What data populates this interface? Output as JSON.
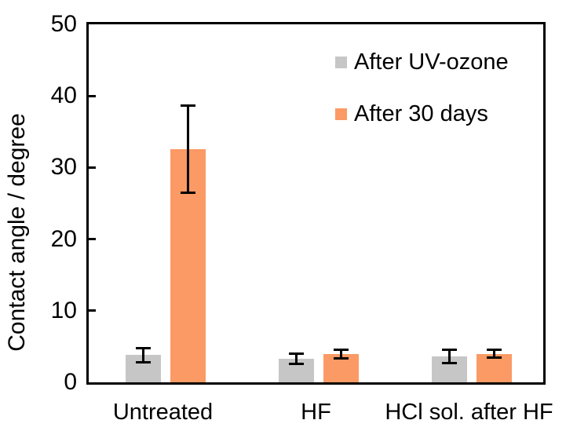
{
  "chart_data": {
    "type": "bar",
    "title": "",
    "xlabel": "",
    "ylabel": "Contact angle / degree",
    "categories": [
      "Untreated",
      "HF",
      "HCl sol. after HF"
    ],
    "series": [
      {
        "name": "After UV-ozone",
        "color": "#C6C6C6",
        "values": [
          3.8,
          3.3,
          3.6
        ],
        "errors": [
          1.0,
          0.7,
          0.9
        ]
      },
      {
        "name": "After 30 days",
        "color": "#FB9A64",
        "values": [
          32.6,
          3.9,
          4.0
        ],
        "errors": [
          6.1,
          0.6,
          0.6
        ]
      }
    ],
    "ylim": [
      0,
      50
    ],
    "yticks": [
      0,
      10,
      20,
      30,
      40,
      50
    ],
    "legend_position": "top-right-inside",
    "grid": false,
    "frame": "full-box",
    "error_bar_color": "#000000",
    "axis_color": "#000000"
  }
}
